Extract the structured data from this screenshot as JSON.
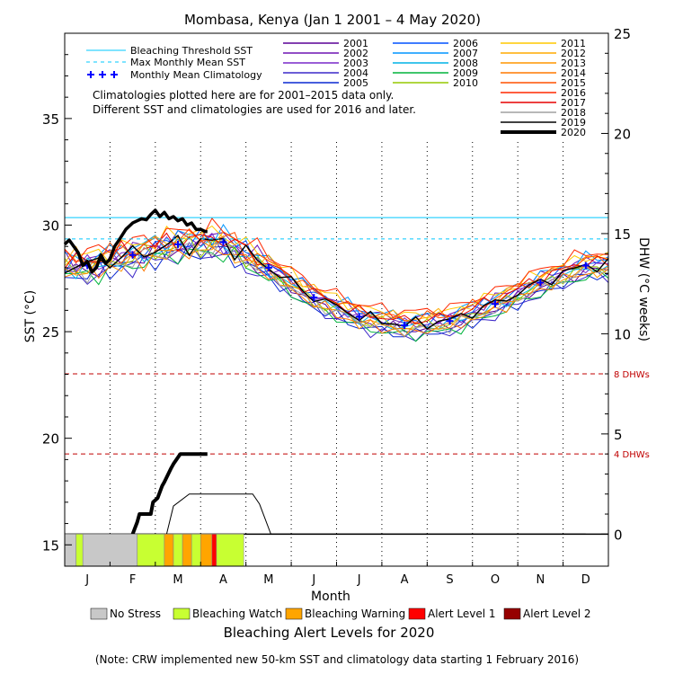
{
  "chart_data": {
    "type": "line",
    "title": "Mombasa, Kenya      (Jan 1 2001 – 4 May 2020)",
    "xlabel": "Month",
    "ylabel_left": "SST (°C)",
    "ylabel_right": "DHW (°C weeks)",
    "months": [
      "J",
      "F",
      "M",
      "A",
      "M",
      "J",
      "J",
      "A",
      "S",
      "O",
      "N",
      "D"
    ],
    "sst_range": [
      14,
      39
    ],
    "dhw_range": [
      -1.6,
      25
    ],
    "sst_ticks": [
      "15",
      "20",
      "25",
      "30",
      "35"
    ],
    "dhw_ticks": [
      "0",
      "5",
      "10",
      "15",
      "20",
      "25"
    ],
    "bleaching_threshold_sst": 30.35,
    "max_monthly_mean_sst": 29.35,
    "dhw_levels": [
      {
        "value": 8,
        "label": "8 DHWs"
      },
      {
        "value": 4,
        "label": "4 DHWs"
      }
    ],
    "legend_left": [
      {
        "name": "Bleaching Threshold SST",
        "color": "#00c8ff",
        "style": "solid"
      },
      {
        "name": "Max Monthly Mean SST",
        "color": "#00c8ff",
        "style": "dashed"
      },
      {
        "name": "Monthly Mean Climatology",
        "color": "#0000ff",
        "style": "plus"
      }
    ],
    "note_lines": [
      "Climatologies plotted here are for 2001–2015 data only.",
      "Different SST and climatologies are used for 2016 and later."
    ],
    "monthly_mean_climatology": [
      28.1,
      28.6,
      29.1,
      29.2,
      28.0,
      26.6,
      25.7,
      25.3,
      25.5,
      26.3,
      27.3,
      28.1
    ],
    "year_series": [
      {
        "name": "2001",
        "color": "#5a0096"
      },
      {
        "name": "2002",
        "color": "#6e14b4"
      },
      {
        "name": "2003",
        "color": "#7828c8"
      },
      {
        "name": "2004",
        "color": "#3c28c8"
      },
      {
        "name": "2005",
        "color": "#0a28d2"
      },
      {
        "name": "2006",
        "color": "#0050ff"
      },
      {
        "name": "2007",
        "color": "#0096ff"
      },
      {
        "name": "2008",
        "color": "#00b4e6"
      },
      {
        "name": "2009",
        "color": "#00b43c"
      },
      {
        "name": "2010",
        "color": "#96c800"
      },
      {
        "name": "2011",
        "color": "#ffc800"
      },
      {
        "name": "2012",
        "color": "#ffaa00"
      },
      {
        "name": "2013",
        "color": "#ff9600"
      },
      {
        "name": "2014",
        "color": "#ff7800"
      },
      {
        "name": "2015",
        "color": "#ff5000"
      },
      {
        "name": "2016",
        "color": "#ff2800"
      },
      {
        "name": "2017",
        "color": "#e60000"
      },
      {
        "name": "2018",
        "color": "#a0a0a0"
      },
      {
        "name": "2019",
        "color": "#000000"
      },
      {
        "name": "2020",
        "color": "#000000"
      }
    ],
    "sst_2020": {
      "x": [
        0.0,
        0.1,
        0.2,
        0.3,
        0.4,
        0.5,
        0.6,
        0.7,
        0.8,
        0.9,
        1.0,
        1.1,
        1.2,
        1.35,
        1.5,
        1.6,
        1.7,
        1.8,
        1.9,
        2.0,
        2.1,
        2.2,
        2.3,
        2.4,
        2.5,
        2.6,
        2.7,
        2.8,
        2.9,
        3.0,
        3.1,
        3.15
      ],
      "y": [
        29.1,
        29.3,
        29.0,
        28.7,
        28.1,
        28.3,
        27.8,
        28.0,
        28.6,
        28.2,
        28.4,
        29.0,
        29.3,
        29.8,
        30.1,
        30.2,
        30.3,
        30.25,
        30.5,
        30.7,
        30.4,
        30.6,
        30.3,
        30.4,
        30.2,
        30.3,
        30.0,
        30.1,
        29.8,
        29.8,
        29.7,
        29.7
      ]
    },
    "dhw_2020": {
      "x": [
        1.5,
        1.6,
        1.65,
        1.9,
        1.95,
        2.05,
        2.15,
        2.2,
        2.35,
        2.4,
        2.55,
        2.8,
        3.05,
        3.15
      ],
      "y": [
        0,
        0.6,
        1.0,
        1.0,
        1.6,
        1.8,
        2.4,
        2.6,
        3.3,
        3.5,
        4.0,
        4.0,
        4.0,
        4.0
      ]
    },
    "dhw_2019": {
      "x": [
        2.25,
        2.4,
        2.75,
        3.0,
        3.8,
        4.0,
        4.15,
        4.3,
        4.55,
        11.5
      ],
      "y": [
        0,
        1.4,
        2.0,
        2.0,
        2.0,
        2.0,
        2.0,
        1.5,
        0,
        0
      ]
    },
    "alert_strip": [
      {
        "x0": 0.0,
        "x1": 0.25,
        "level": "none"
      },
      {
        "x0": 0.25,
        "x1": 0.4,
        "level": "watch"
      },
      {
        "x0": 0.4,
        "x1": 1.6,
        "level": "none"
      },
      {
        "x0": 1.6,
        "x1": 2.2,
        "level": "watch"
      },
      {
        "x0": 2.2,
        "x1": 2.4,
        "level": "warning"
      },
      {
        "x0": 2.4,
        "x1": 2.6,
        "level": "watch"
      },
      {
        "x0": 2.6,
        "x1": 2.8,
        "level": "warning"
      },
      {
        "x0": 2.8,
        "x1": 3.0,
        "level": "watch"
      },
      {
        "x0": 3.0,
        "x1": 3.25,
        "level": "warning"
      },
      {
        "x0": 3.25,
        "x1": 3.35,
        "level": "alert1"
      },
      {
        "x0": 3.35,
        "x1": 3.95,
        "level": "watch"
      }
    ],
    "alert_colors": {
      "none": "#c8c8c8",
      "watch": "#c8ff32",
      "warning": "#ffa500",
      "alert1": "#ff0000",
      "alert2": "#960000"
    },
    "alert_legend": [
      {
        "level": "none",
        "name": "No Stress"
      },
      {
        "level": "watch",
        "name": "Bleaching Watch"
      },
      {
        "level": "warning",
        "name": "Bleaching Warning"
      },
      {
        "level": "alert1",
        "name": "Alert Level 1"
      },
      {
        "level": "alert2",
        "name": "Alert Level 2"
      }
    ],
    "alert_title": "Bleaching Alert Levels for 2020",
    "footnote": "(Note: CRW implemented new 50-km SST and climatology data starting 1 February 2016)"
  }
}
